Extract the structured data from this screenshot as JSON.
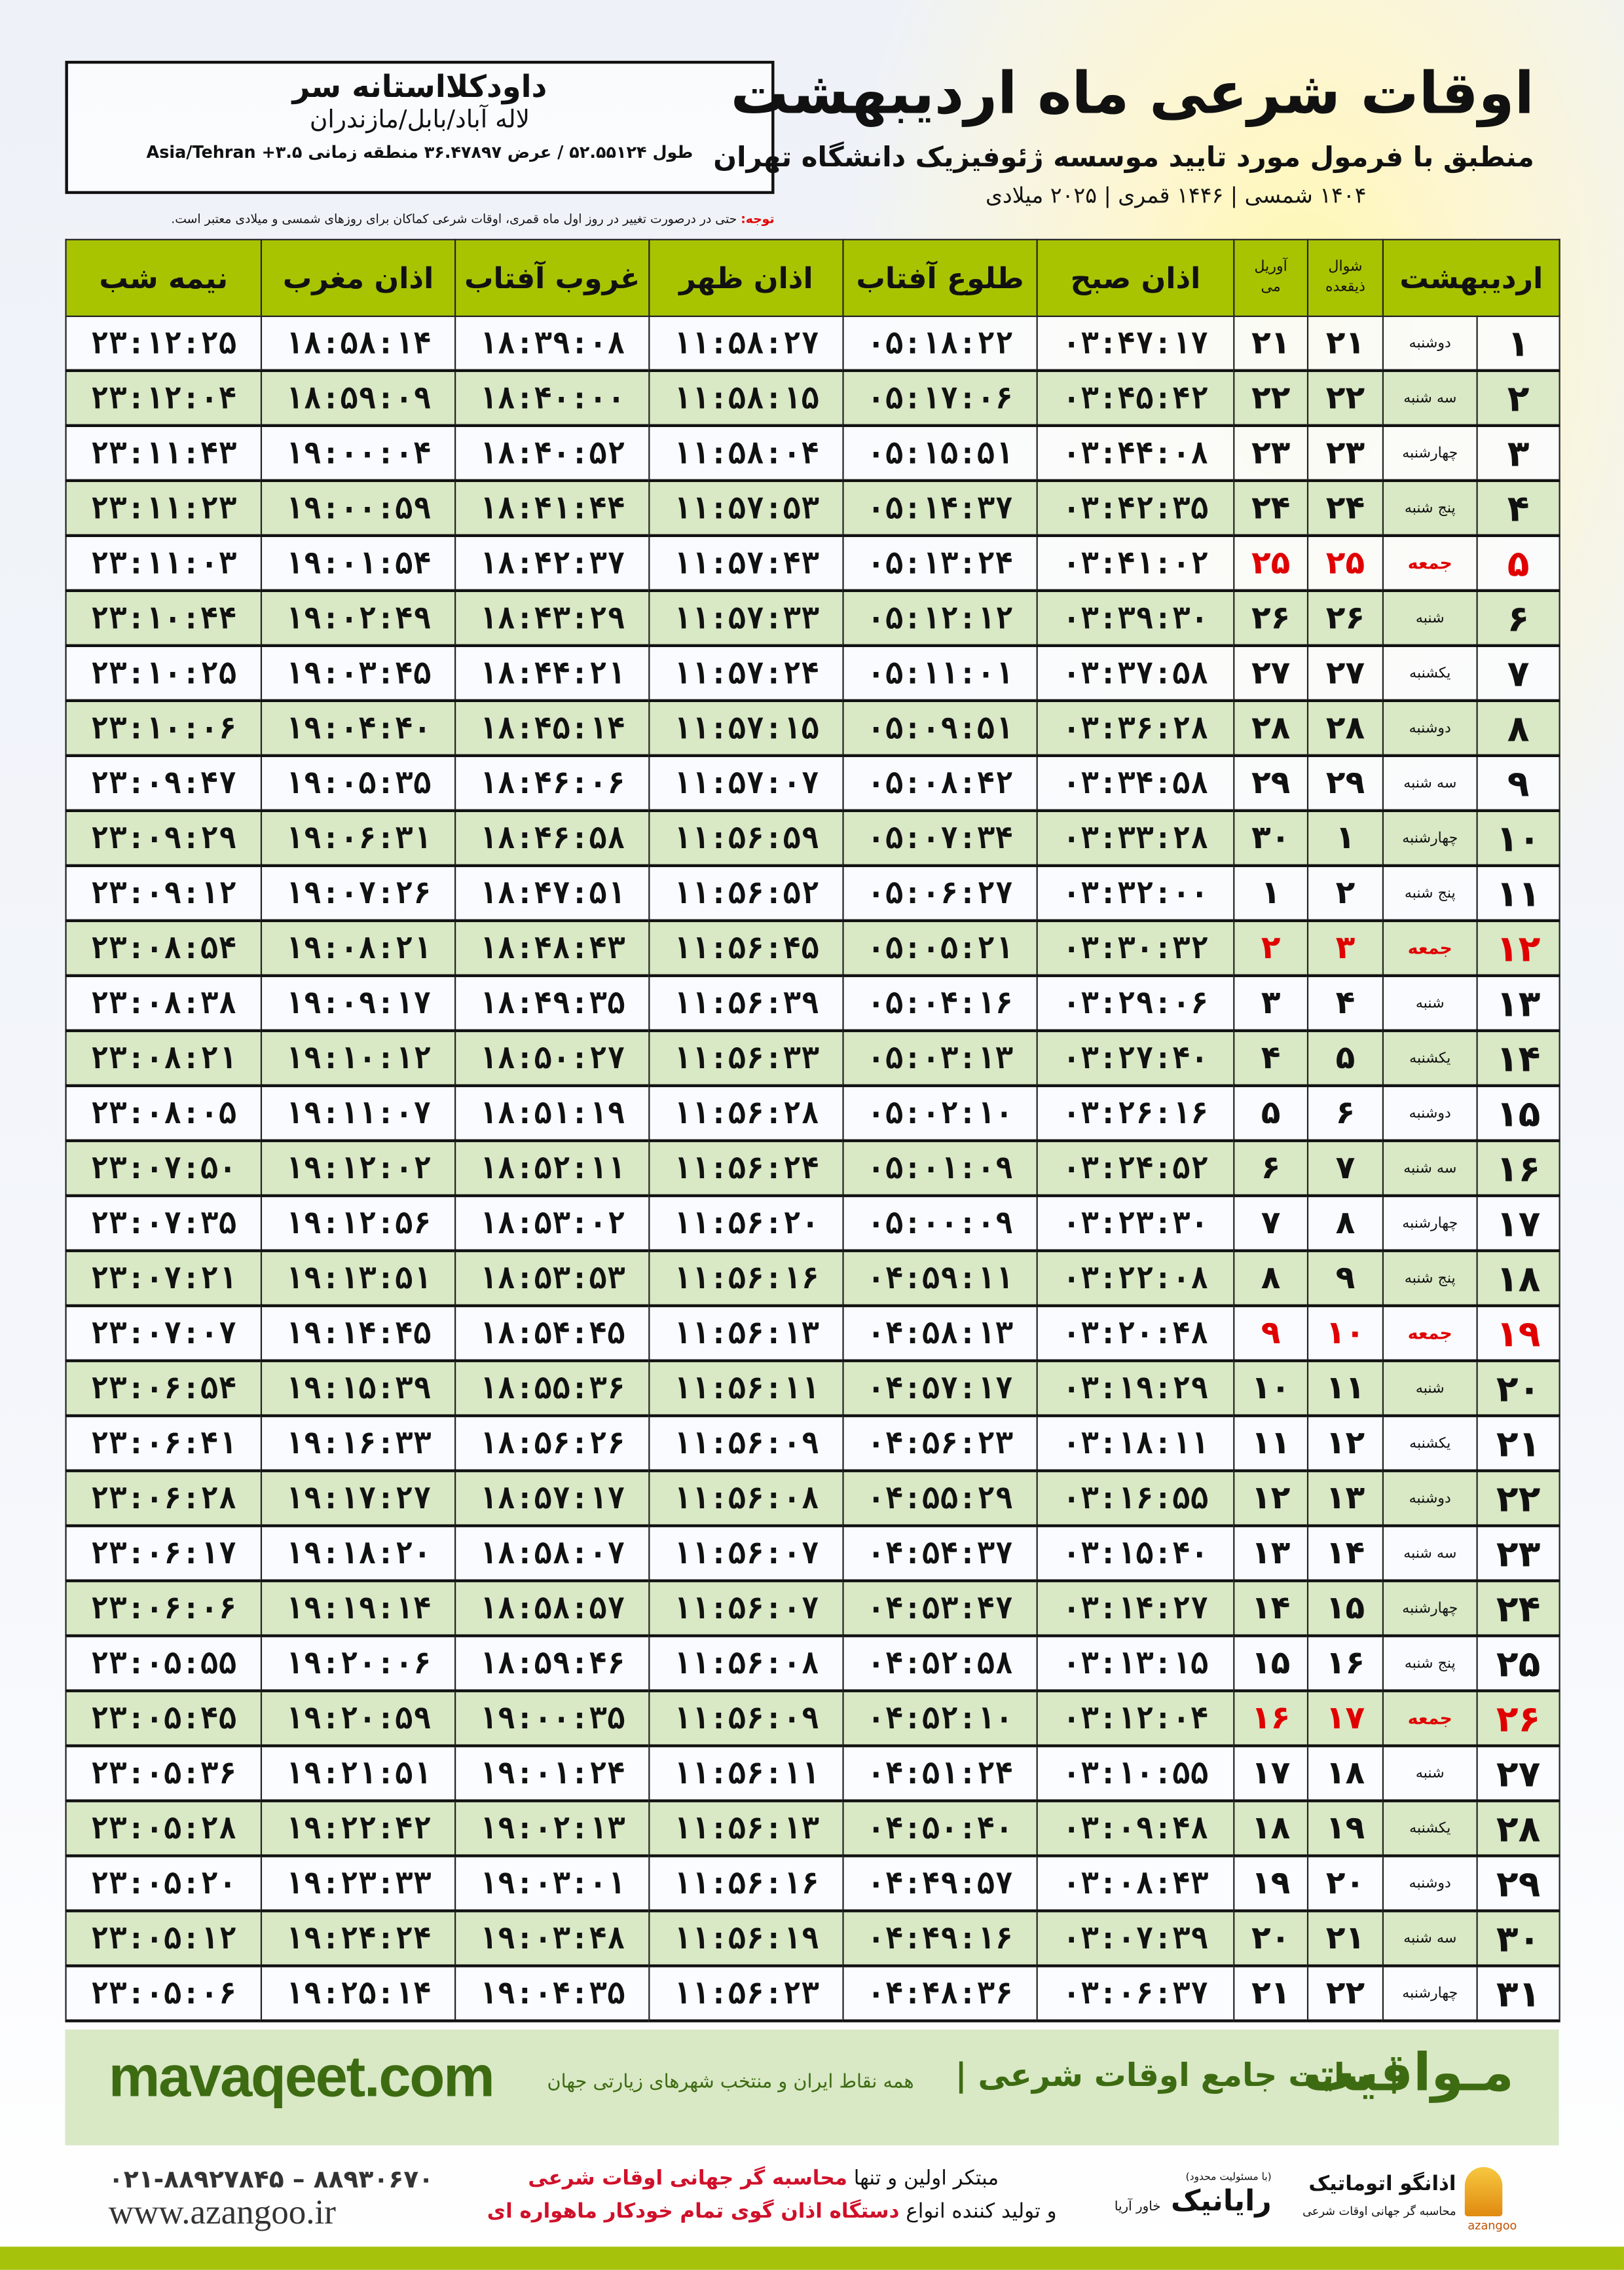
{
  "header": {
    "title": "اوقات شرعی ماه اردیبهشت",
    "subtitle": "منطبق با فرمول مورد تایید موسسه ژئوفیزیک دانشگاه تهران",
    "years": "۱۴۰۴ شمسی | ۱۴۴۶ قمری | ۲۰۲۵ میلادی"
  },
  "location": {
    "city": "داودکلااستانه سر",
    "region": "لاله آباد/بابل/مازندران",
    "coords": "طول ۵۲.۵۵۱۲۴ / عرض ۳۶.۴۷۸۹۷ منطقه زمانی ۳.۵+ Asia/Tehran"
  },
  "note": {
    "label": "توجه:",
    "text": " حتی در درصورت تغییر در روز اول ماه قمری، اوقات شرعی کماکان برای روزهای شمسی و میلادی معتبر است."
  },
  "table": {
    "headers": {
      "day": "اردیبهشت",
      "hijri_top": "شوال",
      "hijri_bottom": "ذیقعده",
      "greg_top": "آوریل",
      "greg_bottom": "می",
      "fajr": "اذان صبح",
      "sunrise": "طلوع آفتاب",
      "dhuhr": "اذان ظهر",
      "sunset": "غروب آفتاب",
      "maghrib": "اذان مغرب",
      "midnight": "نیمه شب"
    },
    "holiday_color": "#e00000",
    "header_color": "#a8c400",
    "rows": [
      {
        "day": "۱",
        "weekday": "دوشنبه",
        "hijri": "۲۱",
        "greg": "۲۱",
        "fajr": "۰۳:۴۷:۱۷",
        "sunrise": "۰۵:۱۸:۲۲",
        "dhuhr": "۱۱:۵۸:۲۷",
        "sunset": "۱۸:۳۹:۰۸",
        "maghrib": "۱۸:۵۸:۱۴",
        "midnight": "۲۳:۱۲:۲۵",
        "holiday": false
      },
      {
        "day": "۲",
        "weekday": "سه شنبه",
        "hijri": "۲۲",
        "greg": "۲۲",
        "fajr": "۰۳:۴۵:۴۲",
        "sunrise": "۰۵:۱۷:۰۶",
        "dhuhr": "۱۱:۵۸:۱۵",
        "sunset": "۱۸:۴۰:۰۰",
        "maghrib": "۱۸:۵۹:۰۹",
        "midnight": "۲۳:۱۲:۰۴",
        "holiday": false
      },
      {
        "day": "۳",
        "weekday": "چهارشنبه",
        "hijri": "۲۳",
        "greg": "۲۳",
        "fajr": "۰۳:۴۴:۰۸",
        "sunrise": "۰۵:۱۵:۵۱",
        "dhuhr": "۱۱:۵۸:۰۴",
        "sunset": "۱۸:۴۰:۵۲",
        "maghrib": "۱۹:۰۰:۰۴",
        "midnight": "۲۳:۱۱:۴۳",
        "holiday": false
      },
      {
        "day": "۴",
        "weekday": "پنج شنبه",
        "hijri": "۲۴",
        "greg": "۲۴",
        "fajr": "۰۳:۴۲:۳۵",
        "sunrise": "۰۵:۱۴:۳۷",
        "dhuhr": "۱۱:۵۷:۵۳",
        "sunset": "۱۸:۴۱:۴۴",
        "maghrib": "۱۹:۰۰:۵۹",
        "midnight": "۲۳:۱۱:۲۳",
        "holiday": false
      },
      {
        "day": "۵",
        "weekday": "جمعه",
        "hijri": "۲۵",
        "greg": "۲۵",
        "fajr": "۰۳:۴۱:۰۲",
        "sunrise": "۰۵:۱۳:۲۴",
        "dhuhr": "۱۱:۵۷:۴۳",
        "sunset": "۱۸:۴۲:۳۷",
        "maghrib": "۱۹:۰۱:۵۴",
        "midnight": "۲۳:۱۱:۰۳",
        "holiday": true
      },
      {
        "day": "۶",
        "weekday": "شنبه",
        "hijri": "۲۶",
        "greg": "۲۶",
        "fajr": "۰۳:۳۹:۳۰",
        "sunrise": "۰۵:۱۲:۱۲",
        "dhuhr": "۱۱:۵۷:۳۳",
        "sunset": "۱۸:۴۳:۲۹",
        "maghrib": "۱۹:۰۲:۴۹",
        "midnight": "۲۳:۱۰:۴۴",
        "holiday": false
      },
      {
        "day": "۷",
        "weekday": "یکشنبه",
        "hijri": "۲۷",
        "greg": "۲۷",
        "fajr": "۰۳:۳۷:۵۸",
        "sunrise": "۰۵:۱۱:۰۱",
        "dhuhr": "۱۱:۵۷:۲۴",
        "sunset": "۱۸:۴۴:۲۱",
        "maghrib": "۱۹:۰۳:۴۵",
        "midnight": "۲۳:۱۰:۲۵",
        "holiday": false
      },
      {
        "day": "۸",
        "weekday": "دوشنبه",
        "hijri": "۲۸",
        "greg": "۲۸",
        "fajr": "۰۳:۳۶:۲۸",
        "sunrise": "۰۵:۰۹:۵۱",
        "dhuhr": "۱۱:۵۷:۱۵",
        "sunset": "۱۸:۴۵:۱۴",
        "maghrib": "۱۹:۰۴:۴۰",
        "midnight": "۲۳:۱۰:۰۶",
        "holiday": false
      },
      {
        "day": "۹",
        "weekday": "سه شنبه",
        "hijri": "۲۹",
        "greg": "۲۹",
        "fajr": "۰۳:۳۴:۵۸",
        "sunrise": "۰۵:۰۸:۴۲",
        "dhuhr": "۱۱:۵۷:۰۷",
        "sunset": "۱۸:۴۶:۰۶",
        "maghrib": "۱۹:۰۵:۳۵",
        "midnight": "۲۳:۰۹:۴۷",
        "holiday": false
      },
      {
        "day": "۱۰",
        "weekday": "چهارشنبه",
        "hijri": "۱",
        "greg": "۳۰",
        "fajr": "۰۳:۳۳:۲۸",
        "sunrise": "۰۵:۰۷:۳۴",
        "dhuhr": "۱۱:۵۶:۵۹",
        "sunset": "۱۸:۴۶:۵۸",
        "maghrib": "۱۹:۰۶:۳۱",
        "midnight": "۲۳:۰۹:۲۹",
        "holiday": false
      },
      {
        "day": "۱۱",
        "weekday": "پنج شنبه",
        "hijri": "۲",
        "greg": "۱",
        "fajr": "۰۳:۳۲:۰۰",
        "sunrise": "۰۵:۰۶:۲۷",
        "dhuhr": "۱۱:۵۶:۵۲",
        "sunset": "۱۸:۴۷:۵۱",
        "maghrib": "۱۹:۰۷:۲۶",
        "midnight": "۲۳:۰۹:۱۲",
        "holiday": false
      },
      {
        "day": "۱۲",
        "weekday": "جمعه",
        "hijri": "۳",
        "greg": "۲",
        "fajr": "۰۳:۳۰:۳۲",
        "sunrise": "۰۵:۰۵:۲۱",
        "dhuhr": "۱۱:۵۶:۴۵",
        "sunset": "۱۸:۴۸:۴۳",
        "maghrib": "۱۹:۰۸:۲۱",
        "midnight": "۲۳:۰۸:۵۴",
        "holiday": true
      },
      {
        "day": "۱۳",
        "weekday": "شنبه",
        "hijri": "۴",
        "greg": "۳",
        "fajr": "۰۳:۲۹:۰۶",
        "sunrise": "۰۵:۰۴:۱۶",
        "dhuhr": "۱۱:۵۶:۳۹",
        "sunset": "۱۸:۴۹:۳۵",
        "maghrib": "۱۹:۰۹:۱۷",
        "midnight": "۲۳:۰۸:۳۸",
        "holiday": false
      },
      {
        "day": "۱۴",
        "weekday": "یکشنبه",
        "hijri": "۵",
        "greg": "۴",
        "fajr": "۰۳:۲۷:۴۰",
        "sunrise": "۰۵:۰۳:۱۳",
        "dhuhr": "۱۱:۵۶:۳۳",
        "sunset": "۱۸:۵۰:۲۷",
        "maghrib": "۱۹:۱۰:۱۲",
        "midnight": "۲۳:۰۸:۲۱",
        "holiday": false
      },
      {
        "day": "۱۵",
        "weekday": "دوشنبه",
        "hijri": "۶",
        "greg": "۵",
        "fajr": "۰۳:۲۶:۱۶",
        "sunrise": "۰۵:۰۲:۱۰",
        "dhuhr": "۱۱:۵۶:۲۸",
        "sunset": "۱۸:۵۱:۱۹",
        "maghrib": "۱۹:۱۱:۰۷",
        "midnight": "۲۳:۰۸:۰۵",
        "holiday": false
      },
      {
        "day": "۱۶",
        "weekday": "سه شنبه",
        "hijri": "۷",
        "greg": "۶",
        "fajr": "۰۳:۲۴:۵۲",
        "sunrise": "۰۵:۰۱:۰۹",
        "dhuhr": "۱۱:۵۶:۲۴",
        "sunset": "۱۸:۵۲:۱۱",
        "maghrib": "۱۹:۱۲:۰۲",
        "midnight": "۲۳:۰۷:۵۰",
        "holiday": false
      },
      {
        "day": "۱۷",
        "weekday": "چهارشنبه",
        "hijri": "۸",
        "greg": "۷",
        "fajr": "۰۳:۲۳:۳۰",
        "sunrise": "۰۵:۰۰:۰۹",
        "dhuhr": "۱۱:۵۶:۲۰",
        "sunset": "۱۸:۵۳:۰۲",
        "maghrib": "۱۹:۱۲:۵۶",
        "midnight": "۲۳:۰۷:۳۵",
        "holiday": false
      },
      {
        "day": "۱۸",
        "weekday": "پنج شنبه",
        "hijri": "۹",
        "greg": "۸",
        "fajr": "۰۳:۲۲:۰۸",
        "sunrise": "۰۴:۵۹:۱۱",
        "dhuhr": "۱۱:۵۶:۱۶",
        "sunset": "۱۸:۵۳:۵۳",
        "maghrib": "۱۹:۱۳:۵۱",
        "midnight": "۲۳:۰۷:۲۱",
        "holiday": false
      },
      {
        "day": "۱۹",
        "weekday": "جمعه",
        "hijri": "۱۰",
        "greg": "۹",
        "fajr": "۰۳:۲۰:۴۸",
        "sunrise": "۰۴:۵۸:۱۳",
        "dhuhr": "۱۱:۵۶:۱۳",
        "sunset": "۱۸:۵۴:۴۵",
        "maghrib": "۱۹:۱۴:۴۵",
        "midnight": "۲۳:۰۷:۰۷",
        "holiday": true
      },
      {
        "day": "۲۰",
        "weekday": "شنبه",
        "hijri": "۱۱",
        "greg": "۱۰",
        "fajr": "۰۳:۱۹:۲۹",
        "sunrise": "۰۴:۵۷:۱۷",
        "dhuhr": "۱۱:۵۶:۱۱",
        "sunset": "۱۸:۵۵:۳۶",
        "maghrib": "۱۹:۱۵:۳۹",
        "midnight": "۲۳:۰۶:۵۴",
        "holiday": false
      },
      {
        "day": "۲۱",
        "weekday": "یکشنبه",
        "hijri": "۱۲",
        "greg": "۱۱",
        "fajr": "۰۳:۱۸:۱۱",
        "sunrise": "۰۴:۵۶:۲۳",
        "dhuhr": "۱۱:۵۶:۰۹",
        "sunset": "۱۸:۵۶:۲۶",
        "maghrib": "۱۹:۱۶:۳۳",
        "midnight": "۲۳:۰۶:۴۱",
        "holiday": false
      },
      {
        "day": "۲۲",
        "weekday": "دوشنبه",
        "hijri": "۱۳",
        "greg": "۱۲",
        "fajr": "۰۳:۱۶:۵۵",
        "sunrise": "۰۴:۵۵:۲۹",
        "dhuhr": "۱۱:۵۶:۰۸",
        "sunset": "۱۸:۵۷:۱۷",
        "maghrib": "۱۹:۱۷:۲۷",
        "midnight": "۲۳:۰۶:۲۸",
        "holiday": false
      },
      {
        "day": "۲۳",
        "weekday": "سه شنبه",
        "hijri": "۱۴",
        "greg": "۱۳",
        "fajr": "۰۳:۱۵:۴۰",
        "sunrise": "۰۴:۵۴:۳۷",
        "dhuhr": "۱۱:۵۶:۰۷",
        "sunset": "۱۸:۵۸:۰۷",
        "maghrib": "۱۹:۱۸:۲۰",
        "midnight": "۲۳:۰۶:۱۷",
        "holiday": false
      },
      {
        "day": "۲۴",
        "weekday": "چهارشنبه",
        "hijri": "۱۵",
        "greg": "۱۴",
        "fajr": "۰۳:۱۴:۲۷",
        "sunrise": "۰۴:۵۳:۴۷",
        "dhuhr": "۱۱:۵۶:۰۷",
        "sunset": "۱۸:۵۸:۵۷",
        "maghrib": "۱۹:۱۹:۱۴",
        "midnight": "۲۳:۰۶:۰۶",
        "holiday": false
      },
      {
        "day": "۲۵",
        "weekday": "پنج شنبه",
        "hijri": "۱۶",
        "greg": "۱۵",
        "fajr": "۰۳:۱۳:۱۵",
        "sunrise": "۰۴:۵۲:۵۸",
        "dhuhr": "۱۱:۵۶:۰۸",
        "sunset": "۱۸:۵۹:۴۶",
        "maghrib": "۱۹:۲۰:۰۶",
        "midnight": "۲۳:۰۵:۵۵",
        "holiday": false
      },
      {
        "day": "۲۶",
        "weekday": "جمعه",
        "hijri": "۱۷",
        "greg": "۱۶",
        "fajr": "۰۳:۱۲:۰۴",
        "sunrise": "۰۴:۵۲:۱۰",
        "dhuhr": "۱۱:۵۶:۰۹",
        "sunset": "۱۹:۰۰:۳۵",
        "maghrib": "۱۹:۲۰:۵۹",
        "midnight": "۲۳:۰۵:۴۵",
        "holiday": true
      },
      {
        "day": "۲۷",
        "weekday": "شنبه",
        "hijri": "۱۸",
        "greg": "۱۷",
        "fajr": "۰۳:۱۰:۵۵",
        "sunrise": "۰۴:۵۱:۲۴",
        "dhuhr": "۱۱:۵۶:۱۱",
        "sunset": "۱۹:۰۱:۲۴",
        "maghrib": "۱۹:۲۱:۵۱",
        "midnight": "۲۳:۰۵:۳۶",
        "holiday": false
      },
      {
        "day": "۲۸",
        "weekday": "یکشنبه",
        "hijri": "۱۹",
        "greg": "۱۸",
        "fajr": "۰۳:۰۹:۴۸",
        "sunrise": "۰۴:۵۰:۴۰",
        "dhuhr": "۱۱:۵۶:۱۳",
        "sunset": "۱۹:۰۲:۱۳",
        "maghrib": "۱۹:۲۲:۴۲",
        "midnight": "۲۳:۰۵:۲۸",
        "holiday": false
      },
      {
        "day": "۲۹",
        "weekday": "دوشنبه",
        "hijri": "۲۰",
        "greg": "۱۹",
        "fajr": "۰۳:۰۸:۴۳",
        "sunrise": "۰۴:۴۹:۵۷",
        "dhuhr": "۱۱:۵۶:۱۶",
        "sunset": "۱۹:۰۳:۰۱",
        "maghrib": "۱۹:۲۳:۳۳",
        "midnight": "۲۳:۰۵:۲۰",
        "holiday": false
      },
      {
        "day": "۳۰",
        "weekday": "سه شنبه",
        "hijri": "۲۱",
        "greg": "۲۰",
        "fajr": "۰۳:۰۷:۳۹",
        "sunrise": "۰۴:۴۹:۱۶",
        "dhuhr": "۱۱:۵۶:۱۹",
        "sunset": "۱۹:۰۳:۴۸",
        "maghrib": "۱۹:۲۴:۲۴",
        "midnight": "۲۳:۰۵:۱۲",
        "holiday": false
      },
      {
        "day": "۳۱",
        "weekday": "چهارشنبه",
        "hijri": "۲۲",
        "greg": "۲۱",
        "fajr": "۰۳:۰۶:۳۷",
        "sunrise": "۰۴:۴۸:۳۶",
        "dhuhr": "۱۱:۵۶:۲۳",
        "sunset": "۱۹:۰۴:۳۵",
        "maghrib": "۱۹:۲۵:۱۴",
        "midnight": "۲۳:۰۵:۰۶",
        "holiday": false
      }
    ]
  },
  "banner": {
    "brand": "مـواقیت",
    "site_fa": "| سایت جامع اوقات شرعی |",
    "tagline": "همه نقاط ایران و منتخب شهرهای زیارتی جهان",
    "site_url": "mavaqeet.com",
    "color": "#3d6b12"
  },
  "footer": {
    "promo_line1_a": "مبتکر اولین و تنها ",
    "promo_line1_b": "محاسبه گر جهانی اوقات شرعی",
    "promo_line2_a": "و تولید کننده انواع ",
    "promo_line2_b": "دستگاه اذان گوی تمام خودکار ماهواره ای",
    "phone": "۰۲۱-۸۸۹۲۷۸۴۵ – ۸۸۹۳۰۶۷۰",
    "website": "www.azangoo.ir",
    "raya_note": "(با مسئولیت محدود)",
    "raya_name": "رایانیک",
    "raya_sub": "خاور آریا",
    "azangoo_name": "اذانگو اتوماتیک",
    "azangoo_sub": "محاسبه گر جهانی اوقات شرعی",
    "azangoo_en": "azangoo"
  }
}
